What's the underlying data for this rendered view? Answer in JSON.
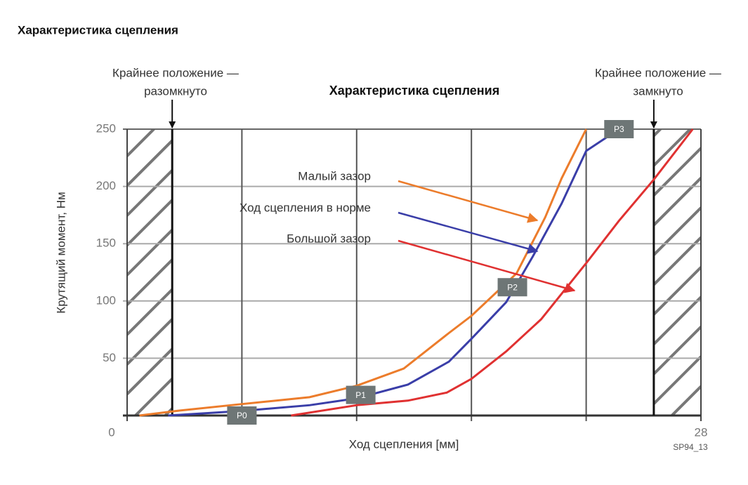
{
  "page_title": "Характеристика сцепления",
  "chart_data": {
    "type": "line",
    "title": "Характеристика сцепления",
    "x_label": "Ход сцепления [мм]",
    "y_label": "Крутящий момент, Нм",
    "figure_code": "SP94_13",
    "xlim": [
      0,
      28
    ],
    "ylim": [
      0,
      250
    ],
    "xticks": [
      0,
      28
    ],
    "x_gridlines": [
      5.6,
      11.2,
      16.8,
      22.4
    ],
    "yticks": [
      50,
      100,
      150,
      200,
      250
    ],
    "grid": true,
    "limits": [
      {
        "lines": [
          "Крайнее положение —",
          "разомкнуто"
        ],
        "x": 2.2
      },
      {
        "lines": [
          "Крайнее положение —",
          "замкнуто"
        ],
        "x": 25.7
      }
    ],
    "series": [
      {
        "name": "Малый зазор",
        "color": "#ec7c2b",
        "x": [
          0.6,
          2.4,
          5.6,
          8.9,
          11.2,
          13.5,
          15.7,
          16.8,
          19,
          20.4,
          21.2,
          22.4
        ],
        "values": [
          0,
          4,
          10,
          16,
          26,
          41,
          72,
          87,
          124,
          173,
          207,
          250
        ]
      },
      {
        "name": "Ход сцепления в норме",
        "color": "#3a3ea8",
        "x": [
          2.0,
          5.6,
          8.9,
          11.2,
          13.7,
          15.7,
          16.8,
          18.5,
          19.8,
          21.2,
          22.4,
          24.0
        ],
        "values": [
          0,
          4,
          9,
          15,
          27,
          47,
          67,
          99,
          139,
          185,
          231,
          250
        ]
      },
      {
        "name": "Большой зазор",
        "color": "#e03131",
        "x": [
          8.0,
          11.2,
          13.7,
          15.6,
          16.8,
          18.5,
          20.2,
          22.4,
          24.0,
          25.7,
          27.6
        ],
        "values": [
          0,
          9,
          13,
          20,
          32,
          56,
          84,
          133,
          170,
          206,
          250
        ]
      }
    ],
    "points": [
      {
        "label": "P0",
        "x": 5.6,
        "y": 0
      },
      {
        "label": "P1",
        "x": 11.4,
        "y": 18
      },
      {
        "label": "P2",
        "x": 18.8,
        "y": 112
      },
      {
        "label": "P3",
        "x": 24.0,
        "y": 250
      }
    ]
  }
}
